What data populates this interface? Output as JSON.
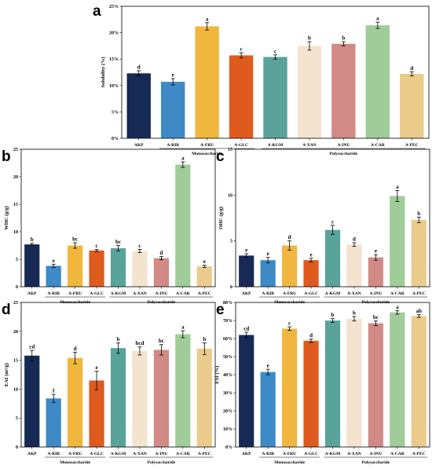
{
  "categories": [
    "AKP",
    "A-RIB",
    "A-FRU",
    "A-GLC",
    "A-KGM",
    "A-XAN",
    "A-INU",
    "A-CAR",
    "A-PEC"
  ],
  "colors": [
    "#172a55",
    "#3d8ac6",
    "#f0b63e",
    "#de5a1f",
    "#5aa39a",
    "#f3e3cf",
    "#d28a86",
    "#9fcc98",
    "#ebcb8b"
  ],
  "groups": [
    {
      "label": "Monosaccharide",
      "from": 1,
      "to": 3
    },
    {
      "label": "Polysaccharide",
      "from": 4,
      "to": 8
    }
  ],
  "chart_data": [
    {
      "panel": "a",
      "type": "bar",
      "ylabel": "Solubility (%)",
      "ylim": [
        0,
        25
      ],
      "ticks": [
        0,
        5,
        10,
        15,
        20,
        25
      ],
      "tick_suffix": "%",
      "values": [
        12.3,
        10.7,
        21.2,
        15.7,
        15.4,
        17.5,
        17.9,
        21.4,
        12.2
      ],
      "errors": [
        0.5,
        0.6,
        0.7,
        0.5,
        0.4,
        0.8,
        0.4,
        0.6,
        0.4
      ],
      "labels": [
        "d",
        "e",
        "a",
        "c",
        "c",
        "b",
        "b",
        "a",
        "d"
      ]
    },
    {
      "panel": "b",
      "type": "bar",
      "ylabel": "WHC (g/g)",
      "ylim": [
        0,
        25
      ],
      "ticks": [
        0,
        5,
        10,
        15,
        20,
        25
      ],
      "tick_suffix": "",
      "values": [
        7.7,
        3.8,
        7.5,
        6.6,
        7.0,
        6.5,
        5.2,
        22.2,
        3.7
      ],
      "errors": [
        0.2,
        0.3,
        0.5,
        0.2,
        0.5,
        0.3,
        0.3,
        0.5,
        0.2
      ],
      "labels": [
        "b",
        "e",
        "bc",
        "c",
        "bc",
        "c",
        "d",
        "a",
        "e"
      ]
    },
    {
      "panel": "c",
      "type": "bar",
      "ylabel": "OHC (g/g)",
      "ylim": [
        0,
        15
      ],
      "ticks": [
        0,
        5,
        10,
        15
      ],
      "tick_suffix": "",
      "values": [
        3.4,
        2.9,
        4.5,
        2.9,
        6.2,
        4.6,
        3.2,
        9.9,
        7.3
      ],
      "errors": [
        0.2,
        0.3,
        0.5,
        0.2,
        0.5,
        0.2,
        0.3,
        0.6,
        0.3
      ],
      "labels": [
        "e",
        "e",
        "d",
        "e",
        "c",
        "d",
        "e",
        "a",
        "b"
      ]
    },
    {
      "panel": "d",
      "type": "bar",
      "ylabel": "EAI (m²/g)",
      "ylim": [
        0,
        25
      ],
      "ticks": [
        0,
        5,
        10,
        15,
        20,
        25
      ],
      "tick_suffix": "",
      "values": [
        15.8,
        8.4,
        15.4,
        11.5,
        17.1,
        16.6,
        16.8,
        19.5,
        17.0
      ],
      "errors": [
        0.9,
        0.7,
        1.0,
        1.6,
        0.9,
        0.7,
        0.9,
        0.6,
        1.0
      ],
      "labels": [
        "cd",
        "f",
        "d",
        "e",
        "b",
        "bcd",
        "bc",
        "a",
        "b"
      ]
    },
    {
      "panel": "e",
      "type": "bar",
      "ylabel": "ESI (%)",
      "ylim": [
        0,
        80
      ],
      "ticks": [
        0,
        10,
        20,
        30,
        40,
        50,
        60,
        70,
        80
      ],
      "tick_suffix": "%",
      "values": [
        62,
        41.5,
        65.5,
        58.8,
        70,
        71,
        68.5,
        74.5,
        72.5
      ],
      "errors": [
        1.5,
        1.5,
        1.0,
        1.0,
        1.0,
        1.2,
        1.3,
        1.0,
        0.8
      ],
      "labels": [
        "cd",
        "e",
        "c",
        "d",
        "b",
        "b",
        "bc",
        "a",
        "ab"
      ]
    }
  ]
}
